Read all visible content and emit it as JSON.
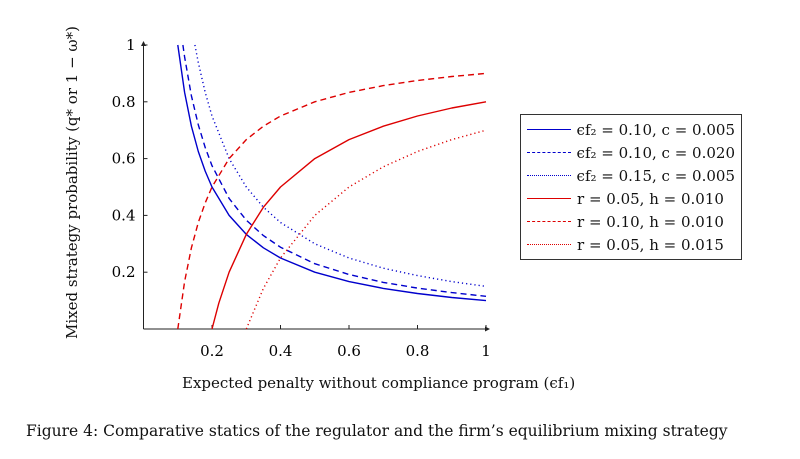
{
  "chart_data": {
    "type": "line",
    "title": "",
    "xlabel": "Expected penalty without compliance program (ϵf₁)",
    "ylabel": "Mixed strategy probability (q* or 1 − ω*)",
    "xlim": [
      0,
      1
    ],
    "ylim": [
      0,
      1
    ],
    "xticks": [
      "0.2",
      "0.4",
      "0.6",
      "0.8",
      "1"
    ],
    "yticks": [
      "0.2",
      "0.4",
      "0.6",
      "0.8",
      "1"
    ],
    "grid": false,
    "legend_position": "right-outside",
    "series": [
      {
        "name": "ϵf₂ = 0.10, c = 0.005",
        "color": "#0000cc",
        "style": "solid",
        "points": [
          [
            0.1,
            1
          ],
          [
            0.12,
            0.833
          ],
          [
            0.14,
            0.714
          ],
          [
            0.16,
            0.625
          ],
          [
            0.18,
            0.556
          ],
          [
            0.2,
            0.5
          ],
          [
            0.25,
            0.4
          ],
          [
            0.3,
            0.333
          ],
          [
            0.35,
            0.286
          ],
          [
            0.4,
            0.25
          ],
          [
            0.5,
            0.2
          ],
          [
            0.6,
            0.167
          ],
          [
            0.7,
            0.143
          ],
          [
            0.8,
            0.125
          ],
          [
            0.9,
            0.111
          ],
          [
            1,
            0.1
          ]
        ]
      },
      {
        "name": "ϵf₂ = 0.10, c = 0.020",
        "color": "#0000cc",
        "style": "dashed",
        "points": [
          [
            0.115,
            1
          ],
          [
            0.12,
            0.958
          ],
          [
            0.14,
            0.821
          ],
          [
            0.16,
            0.719
          ],
          [
            0.18,
            0.639
          ],
          [
            0.2,
            0.575
          ],
          [
            0.25,
            0.46
          ],
          [
            0.3,
            0.383
          ],
          [
            0.35,
            0.329
          ],
          [
            0.4,
            0.288
          ],
          [
            0.5,
            0.23
          ],
          [
            0.6,
            0.192
          ],
          [
            0.7,
            0.164
          ],
          [
            0.8,
            0.144
          ],
          [
            0.9,
            0.128
          ],
          [
            1,
            0.115
          ]
        ]
      },
      {
        "name": "ϵf₂ = 0.15, c = 0.005",
        "color": "#0000cc",
        "style": "dotted",
        "points": [
          [
            0.15,
            1
          ],
          [
            0.16,
            0.938
          ],
          [
            0.18,
            0.833
          ],
          [
            0.2,
            0.75
          ],
          [
            0.25,
            0.6
          ],
          [
            0.3,
            0.5
          ],
          [
            0.35,
            0.429
          ],
          [
            0.4,
            0.375
          ],
          [
            0.5,
            0.3
          ],
          [
            0.6,
            0.25
          ],
          [
            0.7,
            0.214
          ],
          [
            0.8,
            0.188
          ],
          [
            0.9,
            0.167
          ],
          [
            1,
            0.15
          ]
        ]
      },
      {
        "name": "r = 0.05, h = 0.010",
        "color": "#dd0000",
        "style": "solid",
        "points": [
          [
            0.2,
            0
          ],
          [
            0.22,
            0.091
          ],
          [
            0.25,
            0.2
          ],
          [
            0.3,
            0.333
          ],
          [
            0.35,
            0.429
          ],
          [
            0.4,
            0.5
          ],
          [
            0.5,
            0.6
          ],
          [
            0.6,
            0.667
          ],
          [
            0.7,
            0.714
          ],
          [
            0.8,
            0.75
          ],
          [
            0.9,
            0.778
          ],
          [
            1,
            0.8
          ]
        ]
      },
      {
        "name": "r = 0.10, h = 0.010",
        "color": "#dd0000",
        "style": "dashed",
        "points": [
          [
            0.1,
            0
          ],
          [
            0.12,
            0.167
          ],
          [
            0.14,
            0.286
          ],
          [
            0.16,
            0.375
          ],
          [
            0.18,
            0.444
          ],
          [
            0.2,
            0.5
          ],
          [
            0.25,
            0.6
          ],
          [
            0.3,
            0.667
          ],
          [
            0.35,
            0.714
          ],
          [
            0.4,
            0.75
          ],
          [
            0.5,
            0.8
          ],
          [
            0.6,
            0.833
          ],
          [
            0.7,
            0.857
          ],
          [
            0.8,
            0.875
          ],
          [
            0.9,
            0.889
          ],
          [
            1,
            0.9
          ]
        ]
      },
      {
        "name": "r = 0.05, h = 0.015",
        "color": "#dd0000",
        "style": "dotted",
        "points": [
          [
            0.3,
            0
          ],
          [
            0.35,
            0.143
          ],
          [
            0.4,
            0.25
          ],
          [
            0.5,
            0.4
          ],
          [
            0.6,
            0.5
          ],
          [
            0.7,
            0.571
          ],
          [
            0.8,
            0.625
          ],
          [
            0.9,
            0.667
          ],
          [
            1,
            0.7
          ]
        ]
      }
    ]
  },
  "caption": "Figure 4: Comparative statics of the regulator and the firm’s equilibrium mixing strategy"
}
